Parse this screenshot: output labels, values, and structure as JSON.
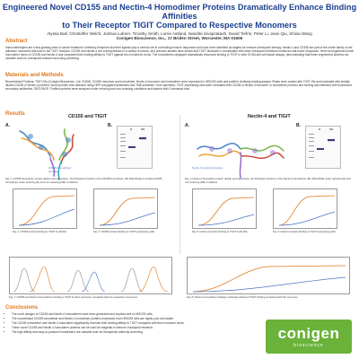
{
  "header": {
    "title_line1": "Engineered Novel CD155 and Nectin-4 Homodimer Proteins Dramatically Enhance Binding Affinities",
    "title_line2": "to Their Receptor TIGIT Compared to Respective Monomers",
    "authors": "Alyssa Ball, Christoffer Welch, Joshua Lubner, Timothy Smith, Lorne Astland, Nandita Sivaprakash, David Tiefrin, Peter Li, Jean Qiu, Shixia Wang",
    "affiliation": "Conigen Bioscience, Inc., 17 Briden Street, Worcester, MA 01605"
  },
  "abstract": {
    "heading": "Abstract",
    "text": "Immunotherapies are a fast-growing area of cancer treatment. Inhibitory receptors and their ligands play a central role in controlling immune responses and have been identified as targets for immune checkpoint therapy. Nectin-4 and CD155 are part of the nectin family of cell adhesion molecules that bind to the TIGIT receptor. CD155 and Nectin-4 are overexpressed in a variety of tumors, and previous studies have shown that TIGIT blockade in combination with other checkpoint inhibitors enhances anti-tumor responses. Here we engineered novel homodimer forms of CD155 and Nectin-4 and compared their binding affinity to TIGIT against the monomeric forms. The homodimers displayed dramatically enhanced binding to TIGIT in both ELISA and cell-based assays, demonstrating that these engineered proteins are valuable tools for checkpoint research and drug screening."
  },
  "methods": {
    "heading": "Materials and Methods",
    "text": "Recombinant Proteins: TIGIT-His (Conigen Bioscience, Cat. 31303), CD155 monomer and homodimer, Nectin-4 monomer and homodimer were expressed in HEK293 cells and purified. Antibody binding assays: Plates were coated with TIGIT-His and incubated with serially diluted CD155 or Nectin-4 proteins; bound protein was detected using HRP-conjugated antibodies and TMB substrate. Flow cytometry: TIGIT-expressing cells were incubated with CD155 or Nectin-4 monomer or homodimer proteins and binding was detected with fluorescent secondary antibodies. SDS-PAGE: Purified proteins were analyzed under reducing and non-reducing conditions and stained with Coomassie blue."
  },
  "results": {
    "heading": "Results",
    "left_title": "CD155 and TIGIT",
    "right_title": "Nectin-4 and TIGIT",
    "panel_a": "A.",
    "panel_b": "B.",
    "gel_labels": [
      "R",
      "NR"
    ],
    "structure_left_label": "CD155-Fc predicted structure",
    "structure_right_label": "Nectin-4 predicted structure",
    "fig1_caption": "Fig. 1. CD155 homodimer protein design and expression. (A) Predicted structure of the CD155 homodimer. (B) SDS-PAGE of purified CD155 homodimer under reducing (R) and non-reducing (NR) conditions.",
    "fig2_caption": "Fig. 2. CD155 protein binding to TIGIT by ELISA.",
    "fig3_caption": "Fig. 3. CD155 protein binding to TIGIT-expressing cells.",
    "fig4_caption": "Fig. 4. Nectin-4 homodimer protein design and expression. (A) Predicted structure of the Nectin-4 homodimer. (B) SDS-PAGE under reducing (R) and non-reducing (NR) conditions.",
    "fig5_caption": "Fig. 5. Nectin-4 protein binding to TIGIT by ELISA.",
    "fig6_caption": "Fig. 6. Nectin-4 protein binding to TIGIT-expressing cells.",
    "fig7_caption": "Fig. 7. CD155 and Nectin-4 homodimer binding to TIGIT by flow cytometry compared with the respective monomers.",
    "fig8_caption": "Fig. 8. Nectin-4 homodimer displays markedly enhanced TIGIT binding compared with the monomer."
  },
  "conclusions": {
    "heading": "Conclusions",
    "items": [
      "The novel designs of CD155 and Nectin-4 homodimers have been generated and express well in HEK293 cells.",
      "The recombinant CD155 homodimer and Nectin-4 homodimer proteins expressed from HEK293 cells are highly pure and stable.",
      "The CD155 homodimer and Nectin-4 homodimer significantly increase their binding affinity to TIGIT compared with their monomer forms.",
      "These novel CD155 and Nectin-4 homodimer proteins can be used as reagents in immune checkpoint research.",
      "The high affinity and easy-to-produce homodimers are valuable tools for therapeutic antibody screening."
    ]
  },
  "logo": {
    "word": "conigen",
    "sub": "bioscience"
  },
  "colors": {
    "title_blue": "#1a3f8f",
    "heading_orange": "#e07818",
    "logo_green": "#6ab23a",
    "homodimer_curve": "#e07818",
    "monomer_curve": "#4a73c4"
  }
}
